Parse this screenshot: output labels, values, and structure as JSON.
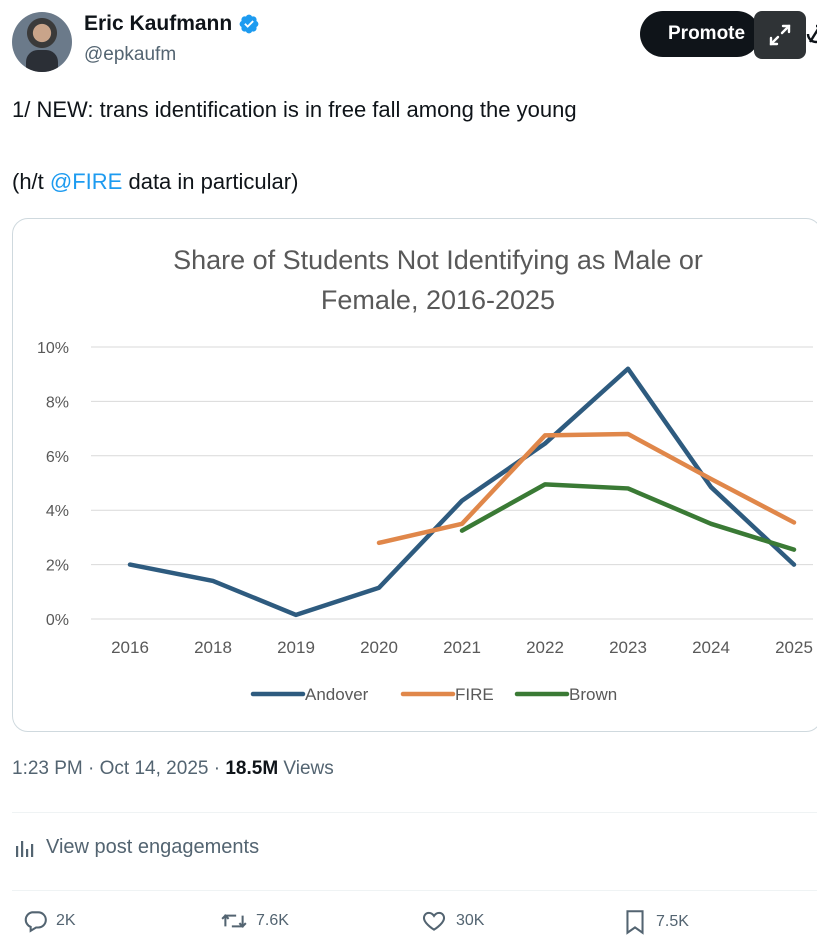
{
  "author": {
    "display_name": "Eric Kaufmann",
    "handle": "@epkaufm",
    "verified_color": "#1d9bf0"
  },
  "header": {
    "promote_label": "Promote"
  },
  "tweet": {
    "line1": "1/ NEW: trans identification is in free fall among the young",
    "line2_prefix": "(h/t ",
    "mention": "@FIRE",
    "line2_suffix": " data in particular)"
  },
  "chart_data": {
    "type": "line",
    "title_line1": "Share of Students Not Identifying as Male or",
    "title_line2": "Female, 2016-2025",
    "categories": [
      "2016",
      "2018",
      "2019",
      "2020",
      "2021",
      "2022",
      "2023",
      "2024",
      "2025"
    ],
    "y_ticks": [
      "0%",
      "2%",
      "4%",
      "6%",
      "8%",
      "10%"
    ],
    "ylim": [
      0,
      10
    ],
    "grid": true,
    "legend": "bottom",
    "series": [
      {
        "name": "Andover",
        "color": "#2e5b7f",
        "values": [
          2.0,
          1.4,
          0.15,
          1.15,
          4.35,
          6.45,
          9.2,
          4.85,
          2.0
        ]
      },
      {
        "name": "FIRE",
        "color": "#e0874a",
        "values": [
          null,
          null,
          null,
          2.8,
          3.5,
          6.75,
          6.8,
          5.15,
          3.55
        ]
      },
      {
        "name": "Brown",
        "color": "#3a7a35",
        "values": [
          null,
          null,
          null,
          null,
          3.25,
          4.95,
          4.8,
          3.5,
          2.55
        ]
      }
    ]
  },
  "meta": {
    "time": "1:23 PM",
    "sep1": " · ",
    "date": "Oct 14, 2025",
    "sep2": " · ",
    "views_count": "18.5M",
    "views_label": " Views"
  },
  "engagements_label": "View post engagements",
  "actions": {
    "replies": "2K",
    "reposts": "7.6K",
    "likes": "30K",
    "bookmarks": "7.5K"
  }
}
